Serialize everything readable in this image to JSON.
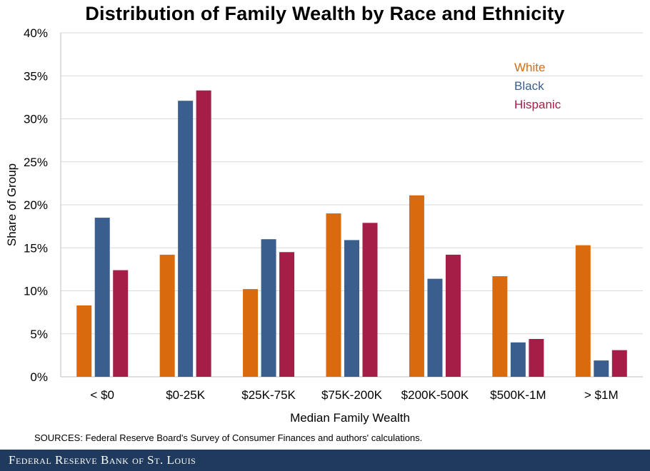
{
  "chart_data": {
    "type": "bar",
    "title": "Distribution of Family Wealth by Race and Ethnicity",
    "xlabel": "Median Family Wealth",
    "ylabel": "Share of Group",
    "categories": [
      "< $0",
      "$0-25K",
      "$25K-75K",
      "$75K-200K",
      "$200K-500K",
      "$500K-1M",
      "> $1M"
    ],
    "ylim": [
      0,
      40
    ],
    "yticks": [
      "0%",
      "5%",
      "10%",
      "15%",
      "20%",
      "25%",
      "30%",
      "35%",
      "40%"
    ],
    "grid": true,
    "legend_position": "top-right",
    "series": [
      {
        "name": "White",
        "color": "#d96a0d",
        "values": [
          8.3,
          14.2,
          10.2,
          19.0,
          21.1,
          11.7,
          15.3
        ]
      },
      {
        "name": "Black",
        "color": "#3a5f8f",
        "values": [
          18.5,
          32.1,
          16.0,
          15.9,
          11.4,
          4.0,
          1.9
        ]
      },
      {
        "name": "Hispanic",
        "color": "#a51e48",
        "values": [
          12.4,
          33.3,
          14.5,
          17.9,
          14.2,
          4.4,
          3.1
        ]
      }
    ]
  },
  "source_note": "SOURCES: Federal Reserve Board's Survey of Consumer Finances and authors' calculations.",
  "footer": {
    "text": "Federal Reserve Bank of St. Louis",
    "bg_color": "#1f3a5c"
  }
}
